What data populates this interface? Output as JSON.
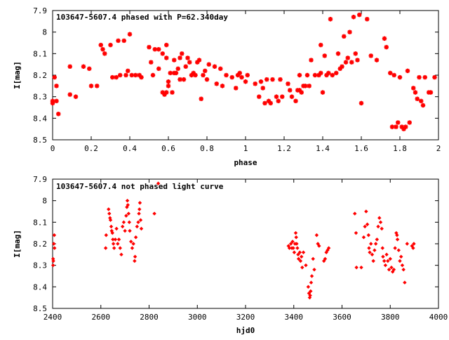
{
  "chart_data": [
    {
      "type": "scatter",
      "title": "103647-5607.4 phased with P=62.340day",
      "xlabel": "phase",
      "ylabel": "I[mag]",
      "xlim": [
        0,
        2
      ],
      "ylim": [
        8.5,
        7.9
      ],
      "y_inverted": true,
      "xticks": [
        "0",
        "0.2",
        "0.4",
        "0.6",
        "0.8",
        "1",
        "1.2",
        "1.4",
        "1.6",
        "1.8",
        "2"
      ],
      "xtick_values": [
        0,
        0.2,
        0.4,
        0.6,
        0.8,
        1,
        1.2,
        1.4,
        1.6,
        1.8,
        2
      ],
      "yticks": [
        "7.9",
        "8",
        "8.1",
        "8.2",
        "8.3",
        "8.4",
        "8.5"
      ],
      "ytick_values": [
        7.9,
        8,
        8.1,
        8.2,
        8.3,
        8.4,
        8.5
      ],
      "marker_color": "#ff0000",
      "points": [
        [
          0.0,
          8.33
        ],
        [
          0.0,
          8.32
        ],
        [
          0.01,
          8.21
        ],
        [
          0.02,
          8.25
        ],
        [
          0.02,
          8.32
        ],
        [
          0.03,
          8.38
        ],
        [
          0.09,
          8.16
        ],
        [
          0.09,
          8.29
        ],
        [
          0.12,
          8.3
        ],
        [
          0.16,
          8.16
        ],
        [
          0.19,
          8.17
        ],
        [
          0.2,
          8.25
        ],
        [
          0.23,
          8.25
        ],
        [
          0.25,
          8.06
        ],
        [
          0.26,
          8.08
        ],
        [
          0.27,
          8.1
        ],
        [
          0.3,
          8.06
        ],
        [
          0.31,
          8.21
        ],
        [
          0.33,
          8.21
        ],
        [
          0.34,
          8.04
        ],
        [
          0.35,
          8.2
        ],
        [
          0.37,
          8.04
        ],
        [
          0.38,
          8.2
        ],
        [
          0.39,
          8.18
        ],
        [
          0.4,
          8.01
        ],
        [
          0.41,
          8.2
        ],
        [
          0.43,
          8.2
        ],
        [
          0.45,
          8.2
        ],
        [
          0.46,
          8.21
        ],
        [
          0.5,
          8.07
        ],
        [
          0.51,
          8.14
        ],
        [
          0.52,
          8.2
        ],
        [
          0.53,
          8.08
        ],
        [
          0.55,
          8.17
        ],
        [
          0.55,
          8.08
        ],
        [
          0.57,
          8.1
        ],
        [
          0.57,
          8.28
        ],
        [
          0.58,
          8.29
        ],
        [
          0.59,
          8.28
        ],
        [
          0.59,
          8.06
        ],
        [
          0.59,
          8.12
        ],
        [
          0.6,
          8.23
        ],
        [
          0.6,
          8.25
        ],
        [
          0.61,
          8.19
        ],
        [
          0.62,
          8.28
        ],
        [
          0.63,
          8.19
        ],
        [
          0.63,
          8.13
        ],
        [
          0.64,
          8.19
        ],
        [
          0.65,
          8.17
        ],
        [
          0.66,
          8.12
        ],
        [
          0.66,
          8.22
        ],
        [
          0.67,
          8.1
        ],
        [
          0.68,
          8.22
        ],
        [
          0.69,
          8.16
        ],
        [
          0.7,
          8.12
        ],
        [
          0.71,
          8.14
        ],
        [
          0.72,
          8.2
        ],
        [
          0.73,
          8.19
        ],
        [
          0.74,
          8.2
        ],
        [
          0.75,
          8.14
        ],
        [
          0.76,
          8.13
        ],
        [
          0.77,
          8.31
        ],
        [
          0.78,
          8.2
        ],
        [
          0.79,
          8.18
        ],
        [
          0.8,
          8.22
        ],
        [
          0.81,
          8.15
        ],
        [
          0.84,
          8.16
        ],
        [
          0.85,
          8.24
        ],
        [
          0.87,
          8.17
        ],
        [
          0.88,
          8.25
        ],
        [
          0.9,
          8.2
        ],
        [
          0.93,
          8.21
        ],
        [
          0.95,
          8.26
        ],
        [
          0.96,
          8.2
        ],
        [
          0.97,
          8.19
        ],
        [
          0.98,
          8.21
        ],
        [
          1.0,
          8.23
        ],
        [
          1.01,
          8.2
        ],
        [
          1.05,
          8.24
        ],
        [
          1.07,
          8.3
        ],
        [
          1.08,
          8.23
        ],
        [
          1.09,
          8.26
        ],
        [
          1.1,
          8.33
        ],
        [
          1.11,
          8.22
        ],
        [
          1.12,
          8.32
        ],
        [
          1.13,
          8.33
        ],
        [
          1.14,
          8.22
        ],
        [
          1.16,
          8.3
        ],
        [
          1.17,
          8.32
        ],
        [
          1.18,
          8.22
        ],
        [
          1.19,
          8.3
        ],
        [
          1.22,
          8.24
        ],
        [
          1.23,
          8.27
        ],
        [
          1.24,
          8.3
        ],
        [
          1.26,
          8.32
        ],
        [
          1.27,
          8.27
        ],
        [
          1.28,
          8.27
        ],
        [
          1.28,
          8.2
        ],
        [
          1.29,
          8.28
        ],
        [
          1.3,
          8.25
        ],
        [
          1.31,
          8.25
        ],
        [
          1.32,
          8.2
        ],
        [
          1.33,
          8.25
        ],
        [
          1.34,
          8.13
        ],
        [
          1.36,
          8.2
        ],
        [
          1.38,
          8.2
        ],
        [
          1.39,
          8.19
        ],
        [
          1.39,
          8.06
        ],
        [
          1.4,
          8.28
        ],
        [
          1.41,
          8.11
        ],
        [
          1.42,
          8.2
        ],
        [
          1.43,
          8.19
        ],
        [
          1.44,
          7.94
        ],
        [
          1.45,
          8.2
        ],
        [
          1.47,
          8.19
        ],
        [
          1.48,
          8.1
        ],
        [
          1.49,
          8.17
        ],
        [
          1.5,
          8.16
        ],
        [
          1.51,
          8.02
        ],
        [
          1.52,
          8.14
        ],
        [
          1.53,
          8.12
        ],
        [
          1.54,
          8.0
        ],
        [
          1.55,
          8.14
        ],
        [
          1.56,
          7.93
        ],
        [
          1.57,
          8.1
        ],
        [
          1.58,
          8.13
        ],
        [
          1.59,
          7.92
        ],
        [
          1.6,
          8.33
        ],
        [
          1.63,
          7.94
        ],
        [
          1.65,
          8.11
        ],
        [
          1.68,
          8.13
        ],
        [
          1.72,
          8.03
        ],
        [
          1.73,
          8.07
        ],
        [
          1.75,
          8.19
        ],
        [
          1.76,
          8.44
        ],
        [
          1.77,
          8.2
        ],
        [
          1.78,
          8.44
        ],
        [
          1.79,
          8.42
        ],
        [
          1.8,
          8.21
        ],
        [
          1.81,
          8.44
        ],
        [
          1.82,
          8.45
        ],
        [
          1.83,
          8.44
        ],
        [
          1.84,
          8.18
        ],
        [
          1.85,
          8.42
        ],
        [
          1.87,
          8.26
        ],
        [
          1.88,
          8.28
        ],
        [
          1.89,
          8.31
        ],
        [
          1.9,
          8.21
        ],
        [
          1.91,
          8.32
        ],
        [
          1.92,
          8.34
        ],
        [
          1.93,
          8.21
        ],
        [
          1.95,
          8.28
        ],
        [
          1.96,
          8.28
        ],
        [
          1.98,
          8.21
        ]
      ]
    },
    {
      "type": "scatter",
      "title": "103647-5607.4 not phased light curve",
      "xlabel": "hjd0",
      "ylabel": "I[mag]",
      "xlim": [
        2400,
        4000
      ],
      "ylim": [
        8.5,
        7.9
      ],
      "y_inverted": true,
      "xticks": [
        "2400",
        "2600",
        "2800",
        "3000",
        "3200",
        "3400",
        "3600",
        "3800",
        "4000"
      ],
      "xtick_values": [
        2400,
        2600,
        2800,
        3000,
        3200,
        3400,
        3600,
        3800,
        4000
      ],
      "yticks": [
        "7.9",
        "8",
        "8.1",
        "8.2",
        "8.3",
        "8.4",
        "8.5"
      ],
      "ytick_values": [
        7.9,
        8,
        8.1,
        8.2,
        8.3,
        8.4,
        8.5
      ],
      "marker_color": "#ff0000",
      "points": [
        [
          2402,
          8.27
        ],
        [
          2402,
          8.3
        ],
        [
          2403,
          8.28
        ],
        [
          2405,
          8.2
        ],
        [
          2407,
          8.16
        ],
        [
          2408,
          8.22
        ],
        [
          2620,
          8.22
        ],
        [
          2622,
          8.16
        ],
        [
          2632,
          8.04
        ],
        [
          2635,
          8.06
        ],
        [
          2638,
          8.08
        ],
        [
          2640,
          8.09
        ],
        [
          2643,
          8.12
        ],
        [
          2645,
          8.14
        ],
        [
          2648,
          8.15
        ],
        [
          2650,
          8.18
        ],
        [
          2652,
          8.2
        ],
        [
          2655,
          8.22
        ],
        [
          2660,
          8.18
        ],
        [
          2665,
          8.13
        ],
        [
          2670,
          8.2
        ],
        [
          2675,
          8.18
        ],
        [
          2680,
          8.22
        ],
        [
          2685,
          8.25
        ],
        [
          2690,
          8.12
        ],
        [
          2695,
          8.1
        ],
        [
          2700,
          8.14
        ],
        [
          2705,
          8.07
        ],
        [
          2708,
          8.03
        ],
        [
          2710,
          8.0
        ],
        [
          2712,
          8.02
        ],
        [
          2715,
          8.06
        ],
        [
          2718,
          8.1
        ],
        [
          2720,
          8.14
        ],
        [
          2725,
          8.19
        ],
        [
          2730,
          8.22
        ],
        [
          2735,
          8.2
        ],
        [
          2740,
          8.28
        ],
        [
          2742,
          8.26
        ],
        [
          2745,
          8.17
        ],
        [
          2750,
          8.12
        ],
        [
          2755,
          8.1
        ],
        [
          2758,
          8.06
        ],
        [
          2760,
          8.04
        ],
        [
          2762,
          8.01
        ],
        [
          2765,
          8.09
        ],
        [
          2768,
          8.13
        ],
        [
          2822,
          8.06
        ],
        [
          2838,
          7.92
        ],
        [
          3378,
          8.21
        ],
        [
          3382,
          8.22
        ],
        [
          3388,
          8.2
        ],
        [
          3392,
          8.22
        ],
        [
          3395,
          8.19
        ],
        [
          3398,
          8.22
        ],
        [
          3402,
          8.24
        ],
        [
          3405,
          8.2
        ],
        [
          3408,
          8.15
        ],
        [
          3410,
          8.17
        ],
        [
          3412,
          8.2
        ],
        [
          3415,
          8.22
        ],
        [
          3418,
          8.25
        ],
        [
          3420,
          8.27
        ],
        [
          3425,
          8.24
        ],
        [
          3428,
          8.28
        ],
        [
          3432,
          8.26
        ],
        [
          3435,
          8.31
        ],
        [
          3440,
          8.24
        ],
        [
          3450,
          8.3
        ],
        [
          3460,
          8.4
        ],
        [
          3463,
          8.43
        ],
        [
          3466,
          8.45
        ],
        [
          3468,
          8.44
        ],
        [
          3470,
          8.42
        ],
        [
          3472,
          8.38
        ],
        [
          3475,
          8.35
        ],
        [
          3480,
          8.27
        ],
        [
          3485,
          8.32
        ],
        [
          3495,
          8.16
        ],
        [
          3500,
          8.2
        ],
        [
          3505,
          8.21
        ],
        [
          3525,
          8.28
        ],
        [
          3530,
          8.27
        ],
        [
          3535,
          8.24
        ],
        [
          3540,
          8.23
        ],
        [
          3545,
          8.22
        ],
        [
          3653,
          8.06
        ],
        [
          3658,
          8.15
        ],
        [
          3660,
          8.31
        ],
        [
          3680,
          8.31
        ],
        [
          3690,
          8.17
        ],
        [
          3695,
          8.12
        ],
        [
          3700,
          8.05
        ],
        [
          3705,
          8.11
        ],
        [
          3710,
          8.16
        ],
        [
          3712,
          8.22
        ],
        [
          3715,
          8.24
        ],
        [
          3720,
          8.2
        ],
        [
          3725,
          8.25
        ],
        [
          3730,
          8.28
        ],
        [
          3735,
          8.23
        ],
        [
          3740,
          8.2
        ],
        [
          3745,
          8.18
        ],
        [
          3750,
          8.12
        ],
        [
          3755,
          8.08
        ],
        [
          3760,
          8.1
        ],
        [
          3765,
          8.13
        ],
        [
          3768,
          8.22
        ],
        [
          3770,
          8.26
        ],
        [
          3775,
          8.28
        ],
        [
          3780,
          8.3
        ],
        [
          3785,
          8.25
        ],
        [
          3790,
          8.28
        ],
        [
          3795,
          8.32
        ],
        [
          3800,
          8.27
        ],
        [
          3805,
          8.31
        ],
        [
          3810,
          8.33
        ],
        [
          3815,
          8.32
        ],
        [
          3820,
          8.22
        ],
        [
          3825,
          8.15
        ],
        [
          3828,
          8.16
        ],
        [
          3830,
          8.18
        ],
        [
          3835,
          8.23
        ],
        [
          3840,
          8.28
        ],
        [
          3845,
          8.26
        ],
        [
          3850,
          8.3
        ],
        [
          3855,
          8.32
        ],
        [
          3860,
          8.38
        ],
        [
          3870,
          8.2
        ],
        [
          3890,
          8.21
        ],
        [
          3895,
          8.22
        ],
        [
          3898,
          8.2
        ]
      ]
    }
  ]
}
